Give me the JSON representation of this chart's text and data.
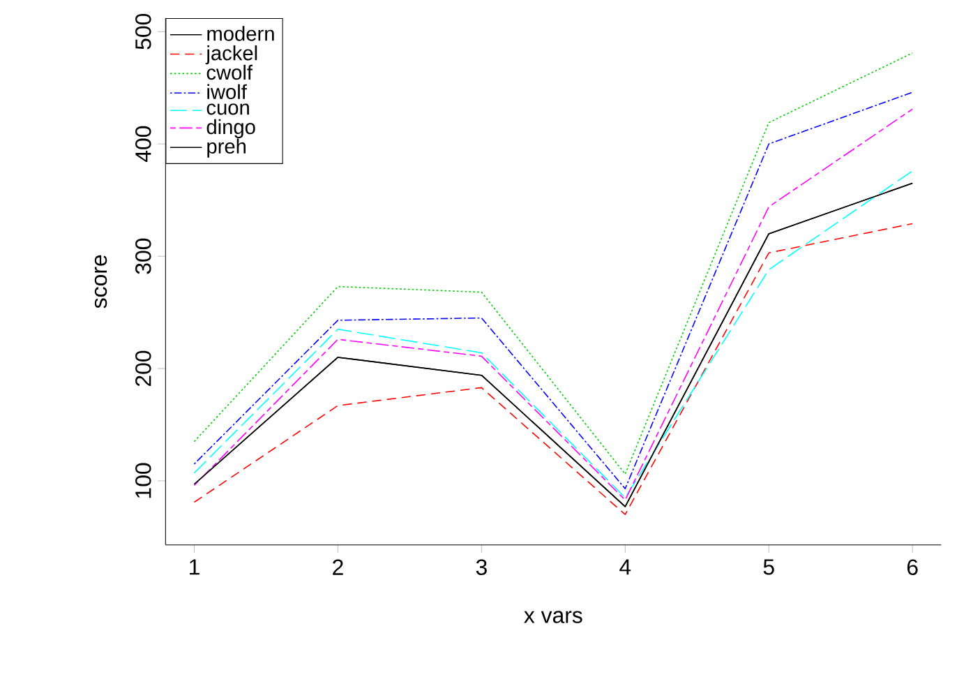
{
  "chart_data": {
    "type": "line",
    "xlabel": "x vars",
    "ylabel": "score",
    "x": [
      1,
      2,
      3,
      4,
      5,
      6
    ],
    "series": [
      {
        "name": "modern",
        "color": "#000000",
        "line_style": "solid",
        "values": [
          97,
          210,
          194,
          77,
          320,
          365
        ]
      },
      {
        "name": "jackel",
        "color": "#ff0000",
        "line_style": "dashed",
        "values": [
          81,
          167,
          183,
          70,
          303,
          329
        ]
      },
      {
        "name": "cwolf",
        "color": "#00cd00",
        "line_style": "dotted",
        "values": [
          135,
          273,
          268,
          106,
          419,
          481
        ]
      },
      {
        "name": "iwolf",
        "color": "#0000ff",
        "line_style": "dashdot",
        "values": [
          115,
          243,
          245,
          93,
          400,
          446
        ]
      },
      {
        "name": "cuon",
        "color": "#00ffff",
        "line_style": "longdash",
        "values": [
          107,
          235,
          214,
          85,
          288,
          376
        ]
      },
      {
        "name": "dingo",
        "color": "#ff00ff",
        "line_style": "twodash",
        "values": [
          96,
          226,
          211,
          83,
          344,
          431
        ]
      },
      {
        "name": "preh",
        "color": "#000000",
        "line_style": "solid",
        "values": [
          97,
          210,
          194,
          77,
          320,
          365
        ]
      }
    ],
    "xlim": [
      0.8,
      6.2
    ],
    "ylim": [
      43,
      512
    ],
    "xticks": [
      1,
      2,
      3,
      4,
      5,
      6
    ],
    "yticks": [
      100,
      200,
      300,
      400,
      500
    ],
    "grid": false,
    "legend": "top left",
    "marker": "none"
  }
}
